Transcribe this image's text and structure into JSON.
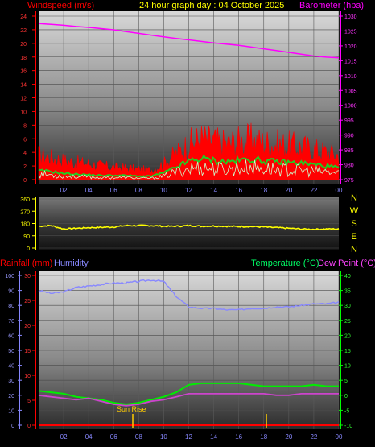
{
  "header": {
    "windspeed_label": "Windspeed (m/s)",
    "title": "24 hour graph day : 04 October 2025",
    "barometer_label": "Barometer (hpa)"
  },
  "mid_header": {
    "rainfall_label": "Rainfall (mm)",
    "humidity_label": "Humidity",
    "temperature_label": "Temperature (°C)",
    "dewpoint_label": "Dew Point (°C)"
  },
  "annotation": {
    "sunrise": "Sun Rise"
  },
  "colors": {
    "windspeed": "#ff0000",
    "barometer": "#ff00ff",
    "title": "#ffff00",
    "wind_avg": "#22cc22",
    "wind_dir": "#ffff00",
    "humidity": "#8888ff",
    "temperature": "#00ff00",
    "dewpoint": "#cc44cc",
    "rainfall": "#ff0000"
  },
  "chart_data": [
    {
      "type": "line",
      "panel": "wind_barometer",
      "x_ticks": [
        "02",
        "04",
        "06",
        "08",
        "10",
        "12",
        "14",
        "16",
        "18",
        "20",
        "22",
        "00"
      ],
      "x_hours": [
        0,
        1,
        2,
        3,
        4,
        5,
        6,
        7,
        8,
        9,
        10,
        11,
        12,
        13,
        14,
        15,
        16,
        17,
        18,
        19,
        20,
        21,
        22,
        23,
        24
      ],
      "y_left_ticks": [
        "0",
        "2",
        "4",
        "6",
        "8",
        "10",
        "12",
        "14",
        "16",
        "18",
        "20",
        "22",
        "24"
      ],
      "y_left_range": [
        0,
        24
      ],
      "y_right_ticks": [
        "975",
        "980",
        "985",
        "990",
        "995",
        "1000",
        "1005",
        "1010",
        "1015",
        "1020",
        "1025",
        "1030"
      ],
      "y_right_range": [
        975,
        1030
      ],
      "series": [
        {
          "name": "Windspeed (m/s)",
          "role": "gust",
          "values": [
            3.6,
            3.2,
            2.8,
            2.5,
            2.3,
            2.0,
            1.8,
            1.7,
            1.5,
            1.4,
            2.3,
            3.8,
            5.2,
            6.0,
            5.6,
            5.2,
            5.6,
            5.8,
            5.4,
            5.2,
            5.0,
            4.8,
            4.4,
            4.0,
            3.6
          ]
        },
        {
          "name": "",
          "role": "average",
          "values": [
            1.3,
            1.2,
            0.9,
            0.8,
            0.7,
            0.6,
            0.6,
            0.6,
            0.5,
            0.5,
            1.0,
            1.8,
            2.7,
            3.1,
            2.8,
            2.6,
            2.8,
            3.0,
            2.7,
            2.6,
            2.5,
            2.4,
            2.2,
            2.0,
            1.7
          ]
        },
        {
          "name": "",
          "role": "low",
          "values": [
            0.8,
            0.7,
            0.5,
            0.4,
            0.4,
            0.3,
            0.3,
            0.3,
            0.2,
            0.2,
            0.5,
            1.1,
            1.6,
            1.8,
            1.6,
            1.5,
            1.7,
            1.8,
            1.6,
            1.5,
            1.4,
            1.3,
            1.2,
            1.1,
            0.9
          ]
        },
        {
          "name": "Barometer (hpa)",
          "role": "barometer",
          "values": [
            1027.5,
            1027.2,
            1026.9,
            1026.5,
            1026.2,
            1025.8,
            1025.4,
            1024.8,
            1024.2,
            1023.6,
            1023.0,
            1022.5,
            1022.0,
            1021.5,
            1021.0,
            1020.6,
            1020.2,
            1019.6,
            1019.0,
            1018.4,
            1017.8,
            1017.2,
            1016.6,
            1016.2,
            1016.0
          ]
        }
      ]
    },
    {
      "type": "line",
      "panel": "wind_direction",
      "x_hours": [
        0,
        1,
        2,
        3,
        4,
        5,
        6,
        7,
        8,
        9,
        10,
        11,
        12,
        13,
        14,
        15,
        16,
        17,
        18,
        19,
        20,
        21,
        22,
        23,
        24
      ],
      "y_ticks": [
        "0",
        "90",
        "180",
        "270",
        "360"
      ],
      "y_range": [
        0,
        360
      ],
      "compass": [
        "N",
        "W",
        "S",
        "E",
        "N"
      ],
      "series": [
        {
          "name": "",
          "values": [
            160,
            165,
            140,
            145,
            150,
            152,
            155,
            165,
            165,
            165,
            160,
            160,
            165,
            160,
            162,
            160,
            158,
            158,
            155,
            150,
            145,
            140,
            138,
            140,
            140
          ]
        }
      ]
    },
    {
      "type": "line",
      "panel": "rain_humidity_temperature",
      "x_ticks": [
        "02",
        "04",
        "06",
        "08",
        "10",
        "12",
        "14",
        "16",
        "18",
        "20",
        "22",
        "00"
      ],
      "x_hours": [
        0,
        1,
        2,
        3,
        4,
        5,
        6,
        7,
        8,
        9,
        10,
        11,
        12,
        13,
        14,
        15,
        16,
        17,
        18,
        19,
        20,
        21,
        22,
        23,
        24
      ],
      "y_left_humidity_ticks": [
        "0",
        "10",
        "20",
        "30",
        "40",
        "50",
        "60",
        "70",
        "80",
        "90",
        "100"
      ],
      "y_left_rain_ticks": [
        "0",
        "5",
        "10",
        "15",
        "20",
        "25",
        "30"
      ],
      "y_right_ticks": [
        "-10",
        "-5",
        "0",
        "5",
        "10",
        "15",
        "20",
        "25",
        "30",
        "35",
        "40"
      ],
      "y_right_range": [
        -10,
        40
      ],
      "series": [
        {
          "name": "Humidity",
          "axis": "humidity",
          "values": [
            90,
            88,
            89,
            92,
            93,
            94,
            95,
            95,
            96,
            97,
            96,
            86,
            79,
            78,
            78,
            77,
            77,
            78,
            78,
            79,
            79,
            80,
            81,
            81,
            82
          ]
        },
        {
          "name": "Temperature (°C)",
          "axis": "temperature",
          "values": [
            1.5,
            1.0,
            0.5,
            -0.5,
            -1.0,
            -1.5,
            -2.5,
            -3.0,
            -2.5,
            -1.5,
            -0.5,
            1.0,
            3.5,
            4.0,
            4.0,
            4.0,
            4.0,
            3.5,
            3.0,
            3.0,
            3.0,
            3.0,
            3.5,
            3.0,
            3.0
          ]
        },
        {
          "name": "Dew Point (°C)",
          "axis": "temperature",
          "values": [
            0.0,
            -0.5,
            -1.0,
            -1.5,
            -1.0,
            -2.0,
            -3.0,
            -3.5,
            -3.0,
            -2.0,
            -1.5,
            -0.5,
            0.5,
            0.5,
            0.5,
            0.5,
            0.5,
            0.5,
            0.5,
            0.0,
            0.0,
            0.5,
            0.5,
            0.5,
            0.5
          ]
        },
        {
          "name": "Rainfall (mm)",
          "axis": "rain",
          "values": [
            0,
            0,
            0,
            0,
            0,
            0,
            0,
            0,
            0,
            0,
            0,
            0,
            0,
            0,
            0,
            0,
            0,
            0,
            0,
            0,
            0,
            0,
            0,
            0,
            0
          ]
        }
      ]
    }
  ]
}
